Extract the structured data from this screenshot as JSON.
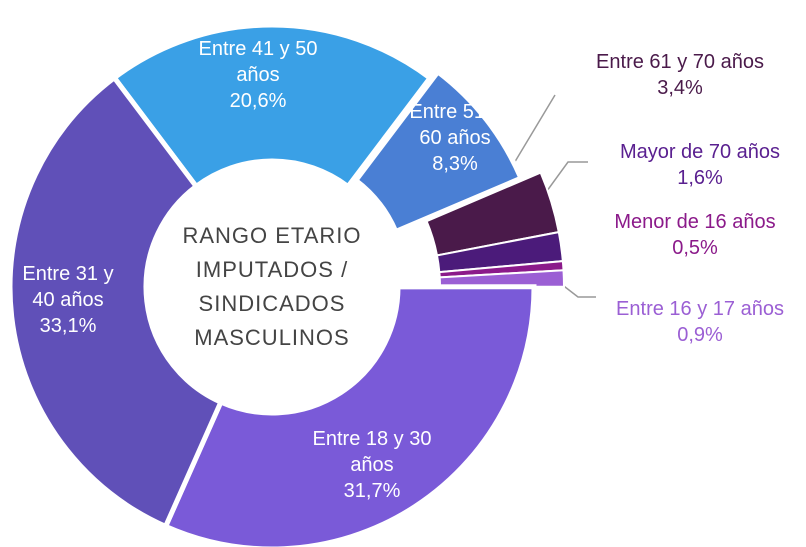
{
  "chart_data": {
    "type": "pie",
    "donut": true,
    "center_label": [
      "RANGO ETARIO",
      "IMPUTADOS /",
      "SINDICADOS",
      "MASCULINOS"
    ],
    "categories": [
      "Entre 41 y 50 años",
      "Entre 51 y 60 años",
      "Entre 61 y 70 años",
      "Mayor de 70 años",
      "Menor de 16 años",
      "Entre 16 y 17 años",
      "Entre 18 y 30 años",
      "Entre 31 y 40 años"
    ],
    "values": [
      20.6,
      8.3,
      3.4,
      1.6,
      0.5,
      0.9,
      31.7,
      33.1
    ],
    "value_labels": [
      "20,6%",
      "8,3%",
      "3,4%",
      "1,6%",
      "0,5%",
      "0,9%",
      "31,7%",
      "33,1%"
    ],
    "colors": [
      "#3aa0e6",
      "#4a7fd4",
      "#4a1a4a",
      "#4b1b7a",
      "#8b1a8a",
      "#9b5fd4",
      "#7a5ad8",
      "#6050b8"
    ]
  }
}
